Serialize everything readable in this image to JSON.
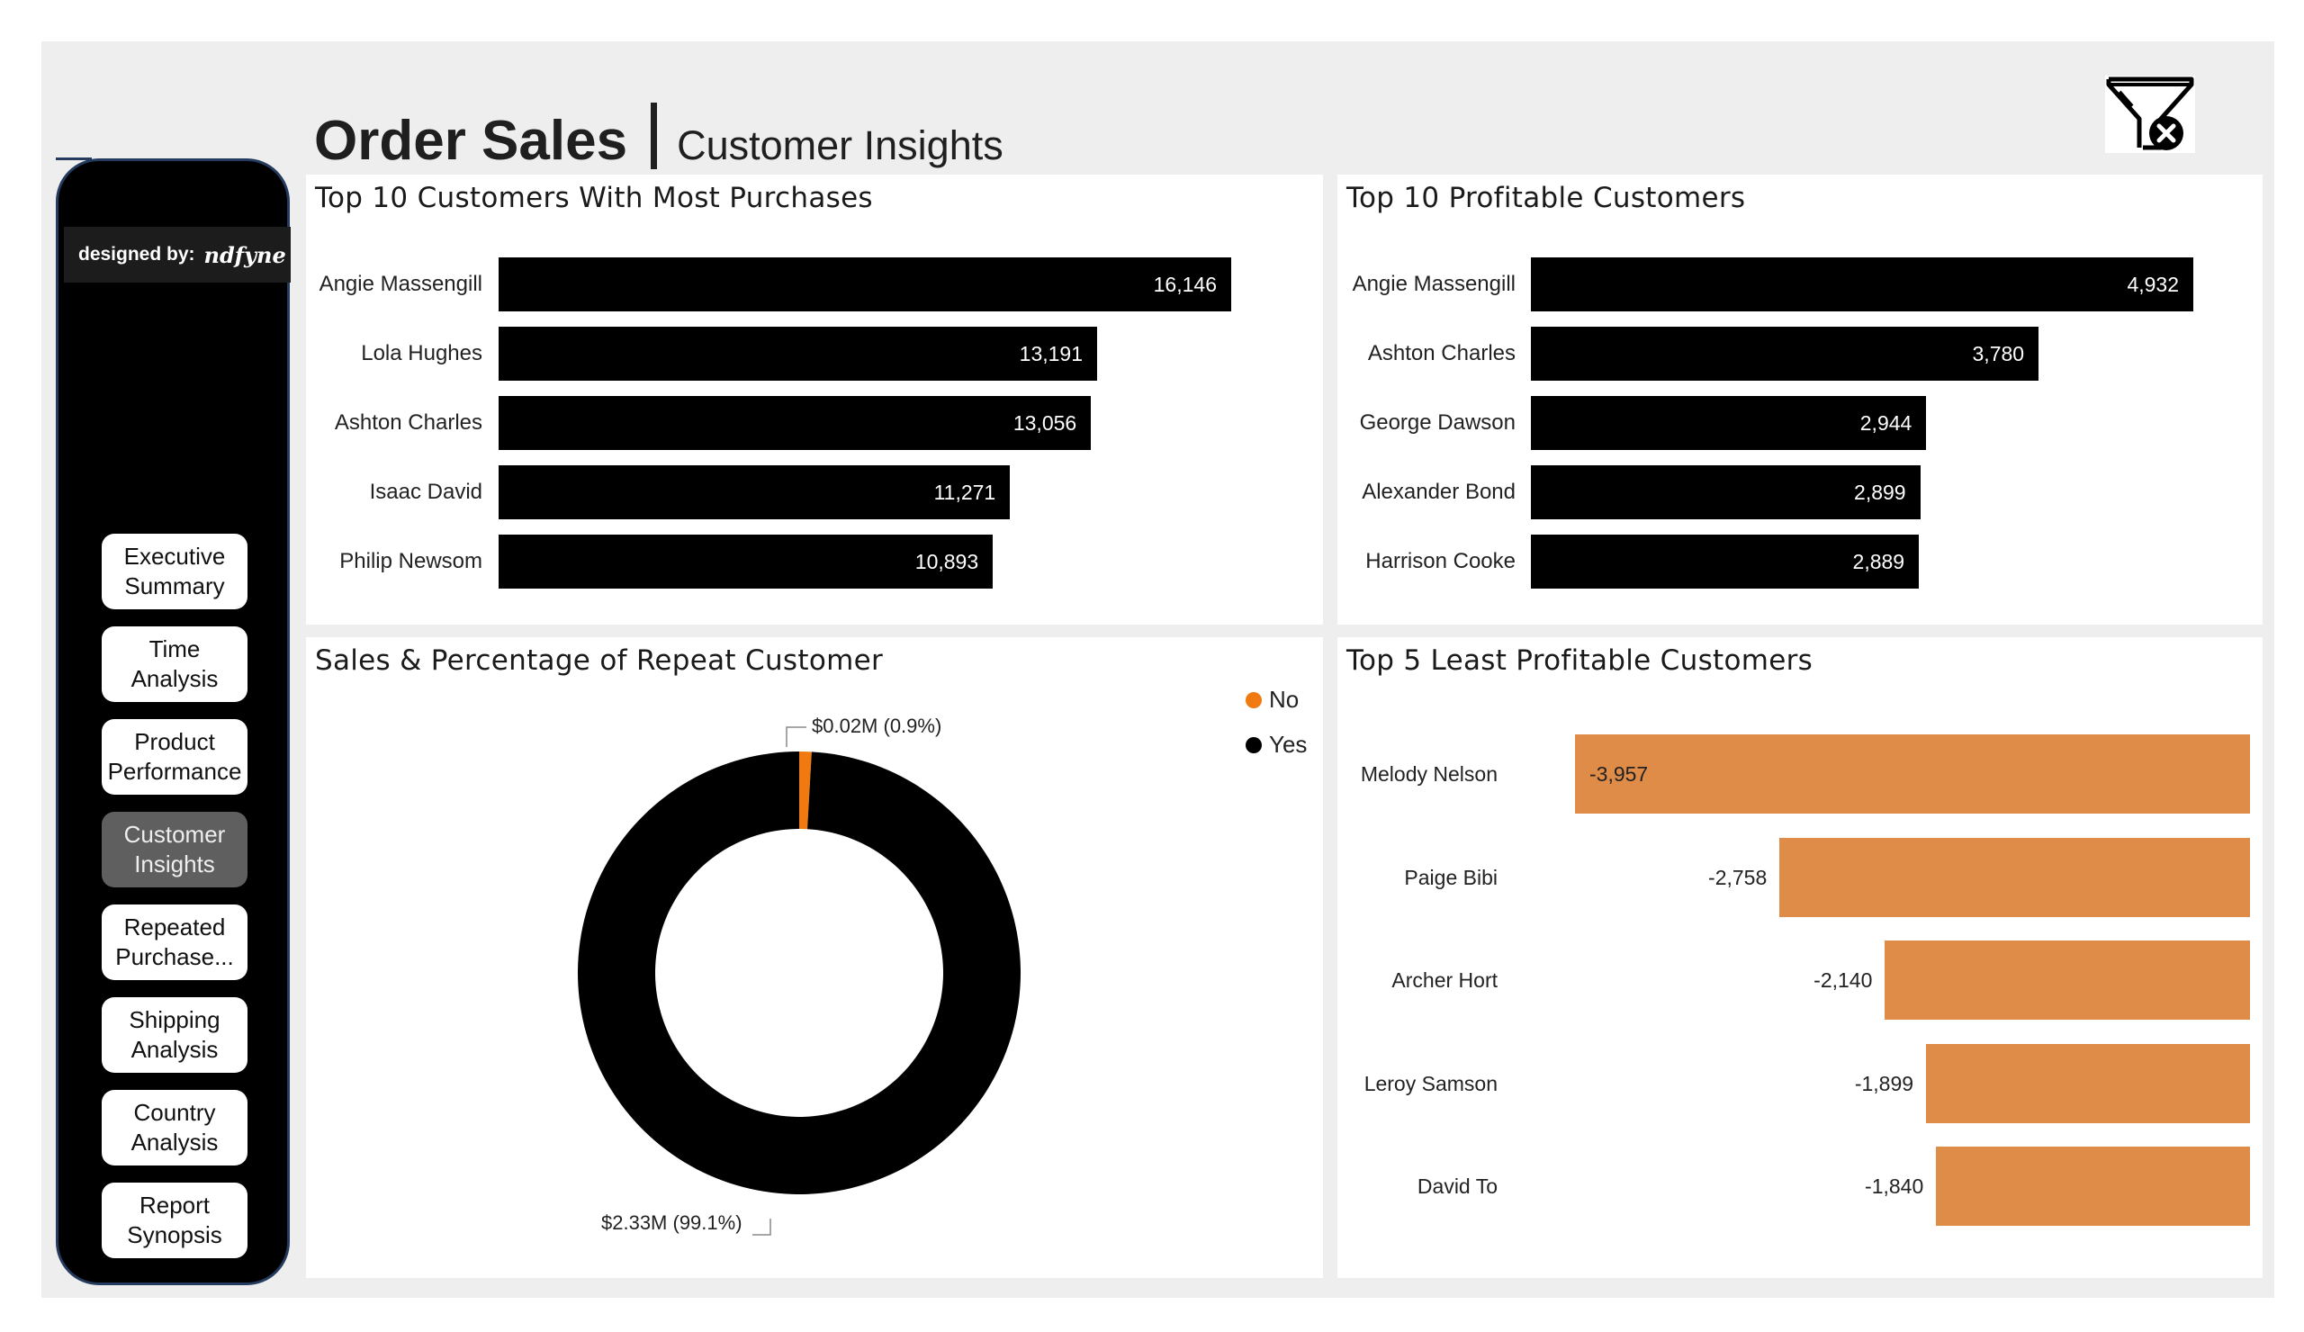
{
  "header": {
    "title": "Order Sales",
    "subtitle": "Customer Insights"
  },
  "filter_button": {
    "icon": "clear-filter-icon"
  },
  "sidebar": {
    "designed_by_label": "designed by:",
    "designed_by_name": "ndfyne",
    "nav": [
      {
        "label": "Executive\nSummary",
        "active": false
      },
      {
        "label": "Time\nAnalysis",
        "active": false
      },
      {
        "label": "Product\nPerformance",
        "active": false
      },
      {
        "label": "Customer\nInsights",
        "active": true
      },
      {
        "label": "Repeated\nPurchase...",
        "active": false
      },
      {
        "label": "Shipping\nAnalysis",
        "active": false
      },
      {
        "label": "Country\nAnalysis",
        "active": false
      },
      {
        "label": "Report\nSynopsis",
        "active": false
      }
    ]
  },
  "colors": {
    "bar": "#000000",
    "negative_bar": "#e08c49",
    "no": "#f07a10",
    "yes": "#000000",
    "active_nav": "#5f5f5f"
  },
  "chart_data": [
    {
      "type": "bar",
      "title": "Top 10 Customers With Most Purchases",
      "categories": [
        "Angie Massengill",
        "Lola Hughes",
        "Ashton Charles",
        "Isaac David",
        "Philip Newsom"
      ],
      "values": [
        16146,
        13191,
        13056,
        11271,
        10893
      ],
      "value_labels": [
        "16,146",
        "13,191",
        "13,056",
        "11,271",
        "10,893"
      ],
      "orientation": "horizontal"
    },
    {
      "type": "bar",
      "title": "Top 10 Profitable Customers",
      "categories": [
        "Angie Massengill",
        "Ashton Charles",
        "George Dawson",
        "Alexander Bond",
        "Harrison Cooke"
      ],
      "values": [
        4932,
        3780,
        2944,
        2899,
        2889
      ],
      "value_labels": [
        "4,932",
        "3,780",
        "2,944",
        "2,899",
        "2,889"
      ],
      "orientation": "horizontal"
    },
    {
      "type": "pie",
      "title": "Sales & Percentage of Repeat Customer",
      "legend": [
        "No",
        "Yes"
      ],
      "legend_position": "top-right",
      "slices": [
        {
          "name": "No",
          "value": 0.02,
          "percent": 0.9,
          "label": "$0.02M (0.9%)"
        },
        {
          "name": "Yes",
          "value": 2.33,
          "percent": 99.1,
          "label": "$2.33M (99.1%)"
        }
      ]
    },
    {
      "type": "bar",
      "title": "Top 5 Least Profitable Customers",
      "categories": [
        "Melody Nelson",
        "Paige Bibi",
        "Archer Hort",
        "Leroy Samson",
        "David To"
      ],
      "values": [
        -3957,
        -2758,
        -2140,
        -1899,
        -1840
      ],
      "value_labels": [
        "-3,957",
        "-2,758",
        "-2,140",
        "-1,899",
        "-1,840"
      ],
      "orientation": "horizontal"
    }
  ]
}
